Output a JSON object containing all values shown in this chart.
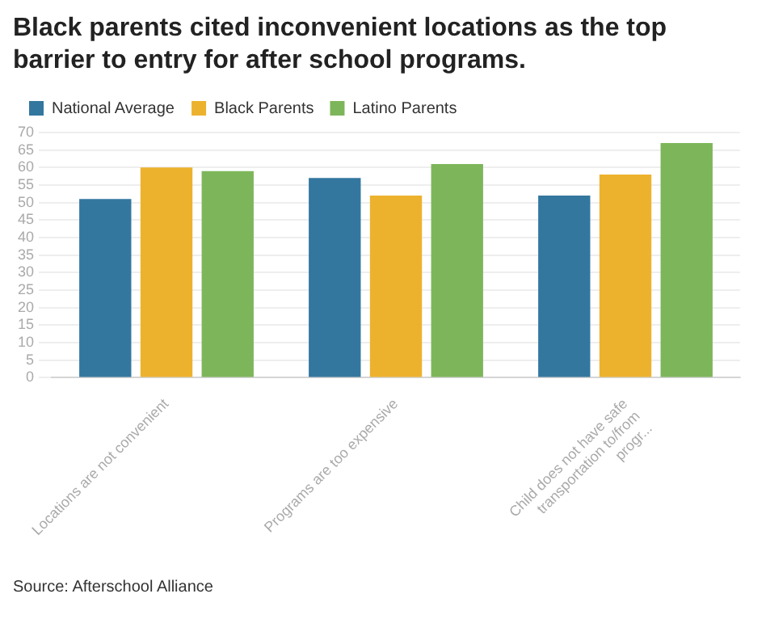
{
  "chart_data": {
    "type": "bar",
    "title": "Black parents cited inconvenient locations as the top barrier to entry for after school programs.",
    "categories": [
      "Locations are not convenient",
      "Programs are too expensive",
      "Child does not have safe transportation to/from progr..."
    ],
    "series": [
      {
        "name": "National Average",
        "color": "#33779f",
        "values": [
          51,
          57,
          52
        ]
      },
      {
        "name": "Black Parents",
        "color": "#edb22d",
        "values": [
          60,
          52,
          58
        ]
      },
      {
        "name": "Latino Parents",
        "color": "#7db65a",
        "values": [
          59,
          61,
          67
        ]
      }
    ],
    "ylim": [
      0,
      70
    ],
    "yticks": [
      0,
      5,
      10,
      15,
      20,
      25,
      30,
      35,
      40,
      45,
      50,
      55,
      60,
      65,
      70
    ],
    "grid": "y",
    "legend": "top left",
    "annotations": [
      "Source: Afterschool Alliance"
    ]
  }
}
